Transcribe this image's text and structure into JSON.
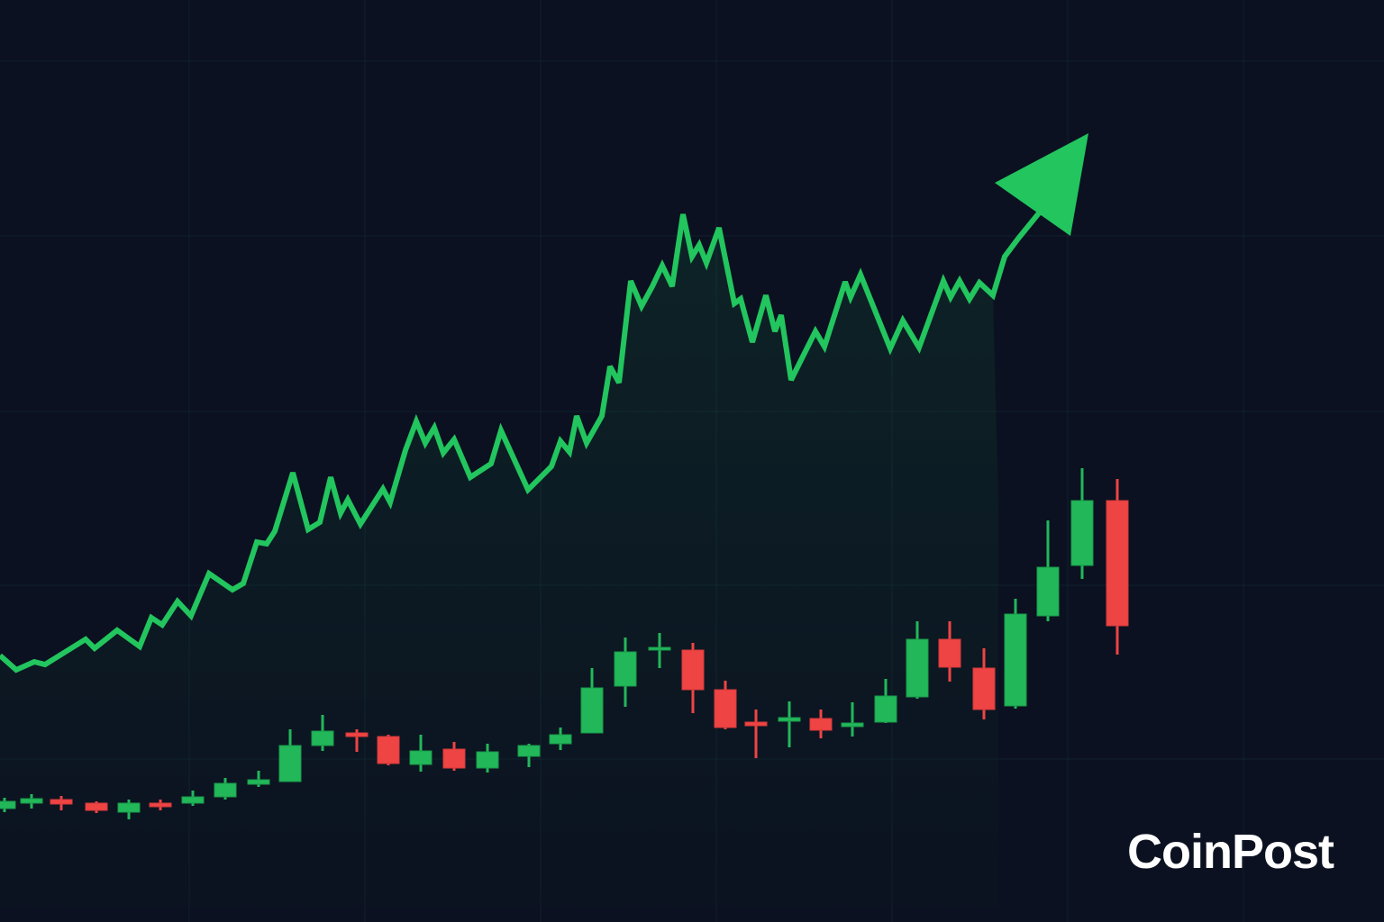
{
  "logo": {
    "text": "CoinPost"
  }
}
